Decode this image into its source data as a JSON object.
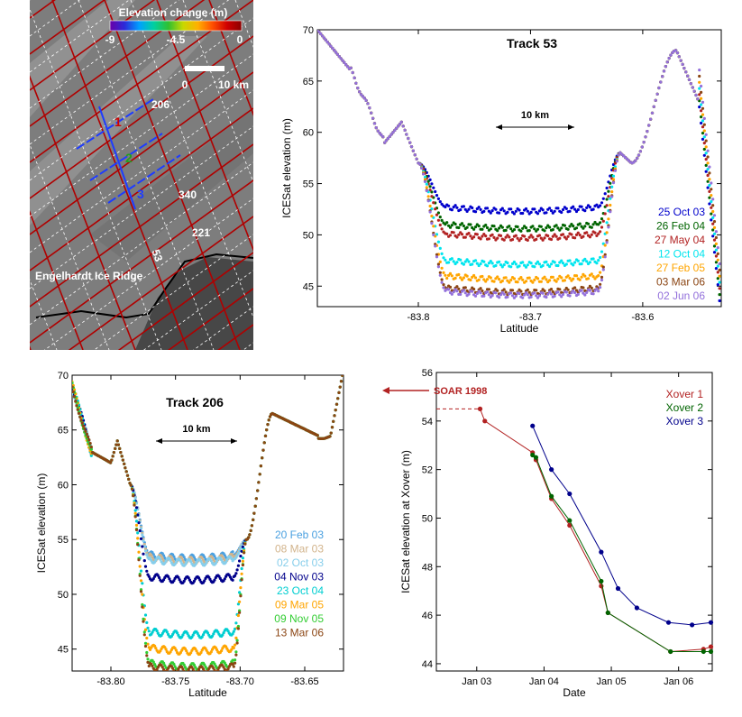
{
  "map": {
    "colorbar_title": "Elevation change (m)",
    "colorbar_ticks": [
      "-9",
      "-4.5",
      "0"
    ],
    "colorbar_colors": [
      "#6a00a8",
      "#2b2bd9",
      "#00a0ff",
      "#00d0a0",
      "#30c030",
      "#c8d800",
      "#ffb000",
      "#ff5000",
      "#d00000",
      "#8a0000"
    ],
    "scale_labels": [
      "0",
      "10 km"
    ],
    "track_labels": [
      "206",
      "340",
      "221",
      "53"
    ],
    "xover_labels": [
      "1",
      "2",
      "3"
    ],
    "region_label": "Engelhardt Ice Ridge",
    "grid_color": "#b00000"
  },
  "chart_data": [
    {
      "type": "line",
      "title": "Track 53",
      "xlabel": "Latitude",
      "ylabel": "ICESat elevation (m)",
      "xlim": [
        -83.89,
        -83.53
      ],
      "ylim": [
        43,
        70
      ],
      "xticks": [
        -83.8,
        -83.7,
        -83.6
      ],
      "yticks": [
        45,
        50,
        55,
        60,
        65,
        70
      ],
      "scale_bar_label": "10 km",
      "legend_position": "bottom-right",
      "series": [
        {
          "name": "25 Oct 03",
          "color": "#0000cc",
          "floor": 52.7
        },
        {
          "name": "26 Feb 04",
          "color": "#006400",
          "floor": 51.0
        },
        {
          "name": "27 May 04",
          "color": "#b22222",
          "floor": 50.1
        },
        {
          "name": "12 Oct 04",
          "color": "#00e5ee",
          "floor": 47.5
        },
        {
          "name": "27 Feb 05",
          "color": "#ffa500",
          "floor": 46.0
        },
        {
          "name": "03 Mar 06",
          "color": "#8b4513",
          "floor": 44.8
        },
        {
          "name": "02 Jun 06",
          "color": "#9370db",
          "floor": 44.5
        }
      ]
    },
    {
      "type": "line",
      "title": "Track 206",
      "xlabel": "Latitude",
      "ylabel": "ICESat elevation (m)",
      "xlim": [
        -83.83,
        -83.62
      ],
      "ylim": [
        43,
        70
      ],
      "xticks": [
        -83.8,
        -83.75,
        -83.7,
        -83.65
      ],
      "xtick_labels": [
        "-83.80",
        "-83.75",
        "-83.70",
        "-83.65"
      ],
      "yticks": [
        45,
        50,
        55,
        60,
        65,
        70
      ],
      "scale_bar_label": "10 km",
      "legend_position": "bottom-right",
      "series": [
        {
          "name": "20 Feb 03",
          "color": "#4aa0e0",
          "floor": 53.6
        },
        {
          "name": "08 Mar 03",
          "color": "#d2b48c",
          "floor": 53.4
        },
        {
          "name": "02 Oct 03",
          "color": "#87ceeb",
          "floor": 53.2
        },
        {
          "name": "04 Nov 03",
          "color": "#00008b",
          "floor": 51.6
        },
        {
          "name": "23 Oct 04",
          "color": "#00ced1",
          "floor": 46.6
        },
        {
          "name": "09 Mar 05",
          "color": "#ffa500",
          "floor": 45.1
        },
        {
          "name": "09 Nov 05",
          "color": "#32cd32",
          "floor": 43.7
        },
        {
          "name": "13 Mar 06",
          "color": "#8b4513",
          "floor": 43.4
        }
      ]
    },
    {
      "type": "line",
      "xlabel": "Date",
      "ylabel": "ICESat elevation at Xover (m)",
      "xlim": [
        2002.4,
        2006.5
      ],
      "ylim": [
        43.7,
        56
      ],
      "xticks": [
        2003,
        2004,
        2005,
        2006
      ],
      "xtick_labels": [
        "Jan 03",
        "Jan 04",
        "Jan 05",
        "Jan 06"
      ],
      "yticks": [
        44,
        46,
        48,
        50,
        52,
        54,
        56
      ],
      "annotation": "SOAR 1998",
      "legend_position": "top-right",
      "series": [
        {
          "name": "Xover 1",
          "color": "#b22222",
          "x": [
            2002.4,
            2003.05,
            2003.12,
            2003.83,
            2003.88,
            2004.11,
            2004.38,
            2004.85,
            2004.95,
            2005.88,
            2006.37,
            2006.48
          ],
          "y": [
            54.5,
            54.5,
            54.0,
            52.7,
            52.4,
            50.8,
            49.7,
            47.2,
            46.1,
            44.5,
            44.6,
            44.7
          ]
        },
        {
          "name": "Xover 2",
          "color": "#006400",
          "x": [
            2003.83,
            2003.88,
            2004.11,
            2004.38,
            2004.85,
            2004.95,
            2005.88,
            2006.37,
            2006.48
          ],
          "y": [
            52.6,
            52.5,
            50.9,
            49.9,
            47.4,
            46.1,
            44.5,
            44.5,
            44.5
          ]
        },
        {
          "name": "Xover 3",
          "color": "#00008b",
          "x": [
            2003.83,
            2004.11,
            2004.38,
            2004.85,
            2005.1,
            2005.38,
            2005.85,
            2006.2,
            2006.48
          ],
          "y": [
            53.8,
            52.0,
            51.0,
            48.6,
            47.1,
            46.3,
            45.7,
            45.6,
            45.7
          ]
        }
      ]
    }
  ]
}
